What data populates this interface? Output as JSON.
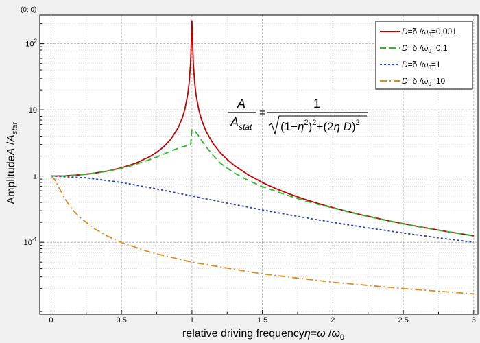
{
  "corner_label": "(0; 0)",
  "chart_data": {
    "type": "line",
    "xlabel": {
      "prefix": "relative driving frequency",
      "eta": "η",
      "eq": "=",
      "omega": "ω",
      "slash": " /",
      "omega0": "ω",
      "omega0_sub": "0"
    },
    "ylabel": {
      "prefix": "Amplitude",
      "A": "A",
      "slash": " /",
      "Astat": "A",
      "Astat_sub": "stat"
    },
    "x_scale": "linear",
    "y_scale": "log",
    "xlim": [
      -0.08,
      3.03
    ],
    "ylim": [
      0.0082,
      270
    ],
    "x_ticks": [
      {
        "v": 0,
        "label": "0"
      },
      {
        "v": 0.5,
        "label": "0.5"
      },
      {
        "v": 1,
        "label": "1"
      },
      {
        "v": 1.5,
        "label": "1.5"
      },
      {
        "v": 2,
        "label": "2"
      },
      {
        "v": 2.5,
        "label": "2.5"
      },
      {
        "v": 3,
        "label": "3"
      }
    ],
    "y_ticks": [
      {
        "v": 0.1,
        "base": "10",
        "exp": "-1"
      },
      {
        "v": 1,
        "base": "1",
        "exp": ""
      },
      {
        "v": 10,
        "base": "10",
        "exp": ""
      },
      {
        "v": 100,
        "base": "10",
        "exp": "2"
      }
    ],
    "grid": true,
    "legend_position": "top-right",
    "series": [
      {
        "D": 0.001,
        "color": "#c00000",
        "dash": "",
        "legend": {
          "D": "D",
          "eq": "=δ /",
          "omega": "ω",
          "sub": "0",
          "val": "=0.001"
        },
        "x": [
          0,
          0.1,
          0.2,
          0.3,
          0.4,
          0.5,
          0.6,
          0.7,
          0.75,
          0.8,
          0.85,
          0.9,
          0.93,
          0.95,
          0.97,
          0.98,
          0.99,
          0.995,
          1.0,
          1.005,
          1.01,
          1.02,
          1.03,
          1.05,
          1.07,
          1.1,
          1.15,
          1.2,
          1.25,
          1.3,
          1.4,
          1.5,
          1.6,
          1.7,
          1.8,
          1.9,
          2.0,
          2.2,
          2.4,
          2.6,
          2.8,
          3.0
        ],
        "y": [
          1.0,
          1.0101,
          1.0417,
          1.0989,
          1.1905,
          1.3333,
          1.5625,
          1.9608,
          2.2857,
          2.7778,
          3.6036,
          5.263,
          7.4068,
          10.2549,
          16.9345,
          25.2336,
          50.1156,
          98.0465,
          220,
          100.2,
          49.4,
          24.8,
          16.4,
          9.7,
          6.9,
          4.76,
          3.1,
          2.27,
          1.78,
          1.449,
          1.042,
          0.8,
          0.641,
          0.529,
          0.446,
          0.383,
          0.3333,
          0.2604,
          0.2101,
          0.1736,
          0.1462,
          0.125
        ]
      },
      {
        "D": 0.1,
        "color": "#2eb82e",
        "dash": "9,5",
        "legend": {
          "D": "D",
          "eq": "=δ /",
          "omega": "ω",
          "sub": "0",
          "val": "=0.1"
        },
        "x": [
          0,
          0.1,
          0.2,
          0.3,
          0.4,
          0.5,
          0.6,
          0.7,
          0.75,
          0.8,
          0.85,
          0.9,
          0.93,
          0.95,
          0.97,
          0.98,
          0.99,
          1.0,
          1.01,
          1.02,
          1.03,
          1.05,
          1.07,
          1.1,
          1.15,
          1.2,
          1.25,
          1.3,
          1.4,
          1.5,
          1.6,
          1.7,
          1.8,
          1.9,
          2.0,
          2.2,
          2.4,
          2.6,
          2.8,
          3.0
        ],
        "y": [
          1.0,
          1.0099,
          1.0407,
          1.0956,
          1.1811,
          1.311,
          1.5,
          1.769,
          1.94,
          2.1443,
          2.3785,
          2.6212,
          2.7524,
          2.824,
          2.876,
          2.894,
          2.9038,
          5.0,
          4.93,
          4.76,
          4.53,
          3.96,
          3.42,
          2.78,
          2.06,
          1.58,
          1.32,
          1.12,
          0.858,
          0.693,
          0.585,
          0.496,
          0.424,
          0.372,
          0.33,
          0.259,
          0.209,
          0.173,
          0.146,
          0.125
        ]
      },
      {
        "D": 1,
        "color": "#1f3fc0",
        "dash": "3,3",
        "legend": {
          "D": "D",
          "eq": "=δ /",
          "omega": "ω",
          "sub": "0",
          "val": "=1"
        },
        "x": [
          0,
          0.25,
          0.5,
          0.75,
          1.0,
          1.25,
          1.5,
          1.75,
          2.0,
          2.25,
          2.5,
          2.75,
          3.0
        ],
        "y": [
          1.0,
          0.9412,
          0.8,
          0.64,
          0.5,
          0.3902,
          0.3077,
          0.2462,
          0.2,
          0.1649,
          0.1379,
          0.1168,
          0.1
        ]
      },
      {
        "D": 10,
        "color": "#e08a1e",
        "dash": "10,4,2,4",
        "legend": {
          "D": "D",
          "eq": "=δ /",
          "omega": "ω",
          "sub": "0",
          "val": "=10"
        },
        "x": [
          0,
          0.025,
          0.05,
          0.1,
          0.15,
          0.2,
          0.3,
          0.4,
          0.5,
          0.7,
          1.0,
          1.5,
          2.0,
          2.5,
          3.0
        ],
        "y": [
          1.0,
          0.894,
          0.707,
          0.447,
          0.316,
          0.243,
          0.164,
          0.124,
          0.0995,
          0.0711,
          0.05,
          0.0333,
          0.0249,
          0.02,
          0.0166
        ]
      }
    ],
    "equation": {
      "num_A": "A",
      "den_A": "A",
      "den_sub": "stat",
      "eq": "=",
      "one": "1",
      "rhs_1": "(1−",
      "rhs_eta": "η",
      "rhs_sq": "2",
      "rhs_close": ")",
      "rhs_plus": "+",
      "rhs_2": "(2",
      "rhs_eta2": "η",
      "rhs_D": " D",
      "rhs_close2": ")"
    }
  }
}
